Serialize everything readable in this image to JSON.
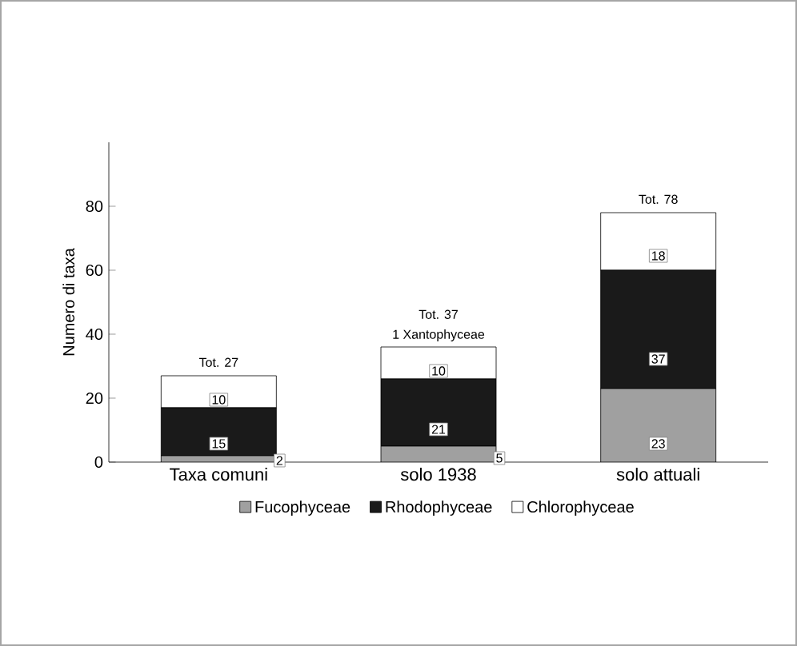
{
  "chart_data": {
    "type": "bar",
    "stacked": true,
    "ylabel": "Numero di taxa",
    "categories": [
      "Taxa comuni",
      "solo 1938",
      "solo attuali"
    ],
    "series": [
      {
        "name": "Fucophyceae",
        "color": "#a0a0a0",
        "values": [
          2,
          5,
          23
        ]
      },
      {
        "name": "Rhodophyceae",
        "color": "#1a1a1a",
        "values": [
          15,
          21,
          37
        ]
      },
      {
        "name": "Chlorophyceae",
        "color": "#ffffff",
        "values": [
          10,
          10,
          18
        ]
      }
    ],
    "totals": [
      "Tot. 27",
      "Tot. 37",
      "Tot. 78"
    ],
    "annotations": [
      {
        "text": "1 Xantophyceae",
        "x": "solo 1938",
        "y": 36
      }
    ],
    "data_labels": true,
    "ylim": [
      0,
      100
    ],
    "yticks": [
      0,
      20,
      40,
      60,
      80
    ],
    "grid": false,
    "legend": "bottom"
  }
}
